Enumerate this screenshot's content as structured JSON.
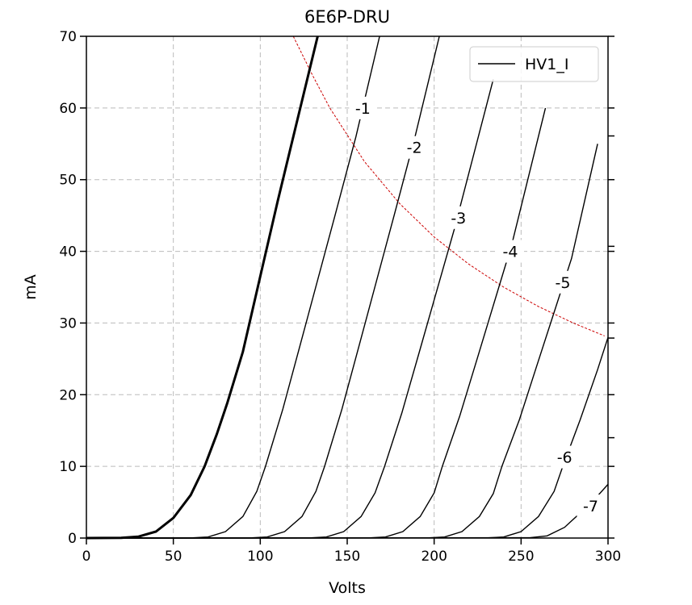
{
  "chart_data": {
    "type": "line",
    "title": "6E6P-DRU",
    "xlabel": "Volts",
    "ylabel": "mA",
    "xlim": [
      0,
      300
    ],
    "ylim": [
      0,
      70
    ],
    "xticks": [
      0,
      50,
      100,
      150,
      200,
      250,
      300
    ],
    "yticks": [
      0,
      10,
      20,
      30,
      40,
      50,
      60,
      70
    ],
    "right_axis_extra_ticks": [
      56.1,
      40.7,
      27.9,
      14.0
    ],
    "grid": true,
    "legend": {
      "placement": "top-right",
      "entries": [
        {
          "label": "HV1_I",
          "color": "#000000"
        }
      ]
    },
    "series": [
      {
        "name": "HV1_I",
        "grid_voltage": "0",
        "color": "#000000",
        "bold": true,
        "points": [
          [
            0,
            0
          ],
          [
            20,
            0.02
          ],
          [
            30,
            0.2
          ],
          [
            40,
            0.9
          ],
          [
            50,
            2.8
          ],
          [
            60,
            6
          ],
          [
            68,
            10
          ],
          [
            75,
            14.5
          ],
          [
            81,
            18.8
          ],
          [
            90,
            26
          ],
          [
            100,
            36.5
          ],
          [
            110,
            47
          ],
          [
            120,
            57
          ],
          [
            133,
            70
          ]
        ]
      },
      {
        "label": "-1",
        "label_at": [
          159,
          60
        ],
        "color": "#000000",
        "points": [
          [
            0,
            0
          ],
          [
            60,
            0.02
          ],
          [
            70,
            0.15
          ],
          [
            80,
            0.9
          ],
          [
            90,
            3
          ],
          [
            98,
            6.5
          ],
          [
            103,
            10
          ],
          [
            113,
            18
          ],
          [
            123,
            27
          ],
          [
            143,
            45
          ],
          [
            155,
            56
          ],
          [
            168.6,
            70
          ]
        ]
      },
      {
        "label": "-2",
        "label_at": [
          188.6,
          54.5
        ],
        "color": "#000000",
        "points": [
          [
            0,
            0
          ],
          [
            94,
            0.02
          ],
          [
            104,
            0.15
          ],
          [
            114,
            0.9
          ],
          [
            124,
            3
          ],
          [
            132,
            6.5
          ],
          [
            137,
            10
          ],
          [
            147,
            18
          ],
          [
            157,
            27
          ],
          [
            177,
            45
          ],
          [
            189,
            56
          ],
          [
            203,
            70
          ]
        ]
      },
      {
        "label": "-3",
        "label_at": [
          214,
          44.7
        ],
        "color": "#000000",
        "points": [
          [
            0,
            0
          ],
          [
            128,
            0.02
          ],
          [
            138,
            0.15
          ],
          [
            148,
            0.9
          ],
          [
            158,
            3
          ],
          [
            166,
            6.3
          ],
          [
            171.5,
            10
          ],
          [
            181.5,
            17.5
          ],
          [
            191.5,
            26
          ],
          [
            211.5,
            43
          ],
          [
            234,
            64
          ]
        ]
      },
      {
        "label": "-4",
        "label_at": [
          243.8,
          40
        ],
        "color": "#000000",
        "points": [
          [
            0,
            0
          ],
          [
            162,
            0.02
          ],
          [
            172,
            0.15
          ],
          [
            182,
            0.9
          ],
          [
            192,
            3
          ],
          [
            200,
            6.3
          ],
          [
            204.7,
            10
          ],
          [
            214.7,
            17
          ],
          [
            224.7,
            25
          ],
          [
            244.7,
            41
          ],
          [
            264,
            60
          ]
        ]
      },
      {
        "label": "-5",
        "label_at": [
          274,
          35.7
        ],
        "color": "#000000",
        "points": [
          [
            0,
            0
          ],
          [
            196,
            0.02
          ],
          [
            206,
            0.15
          ],
          [
            216,
            0.9
          ],
          [
            226,
            3
          ],
          [
            234,
            6.2
          ],
          [
            239,
            10
          ],
          [
            249,
            16.5
          ],
          [
            259,
            24
          ],
          [
            279,
            39
          ],
          [
            294,
            55
          ]
        ]
      },
      {
        "label": "-6",
        "label_at": [
          275,
          11.3
        ],
        "color": "#000000",
        "points": [
          [
            0,
            0
          ],
          [
            230,
            0.02
          ],
          [
            240,
            0.15
          ],
          [
            250,
            0.9
          ],
          [
            260,
            3
          ],
          [
            269,
            6.5
          ],
          [
            274,
            10
          ],
          [
            284,
            16.5
          ],
          [
            294,
            23.5
          ],
          [
            300,
            28
          ]
        ]
      },
      {
        "label": "-7",
        "label_at": [
          290,
          4.5
        ],
        "color": "#000000",
        "points": [
          [
            0,
            0
          ],
          [
            255,
            0.05
          ],
          [
            265,
            0.3
          ],
          [
            275,
            1.5
          ],
          [
            279,
            2.4
          ],
          [
            290,
            4.8
          ],
          [
            300,
            7.5
          ]
        ]
      }
    ],
    "power_limit_curve": {
      "color": "#cc0000",
      "style": "dashed",
      "points": [
        [
          119,
          70
        ],
        [
          130,
          64.6
        ],
        [
          140,
          60
        ],
        [
          160,
          52.5
        ],
        [
          180,
          46.7
        ],
        [
          200,
          42
        ],
        [
          220,
          38.2
        ],
        [
          240,
          35
        ],
        [
          260,
          32.3
        ],
        [
          280,
          30
        ],
        [
          298,
          28.2
        ]
      ]
    }
  }
}
